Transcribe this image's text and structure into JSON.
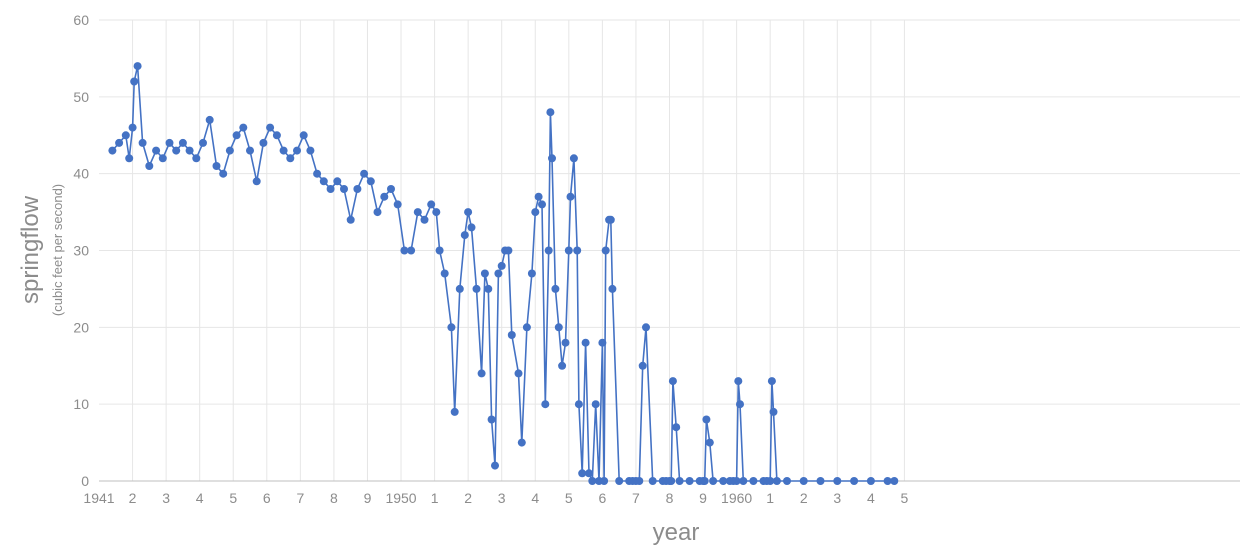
{
  "chart_data": {
    "type": "line",
    "xlabel": "year",
    "ylabel": "springflow",
    "ylabel_sub": "(cubic feet per second)",
    "xlim": [
      1941,
      1975
    ],
    "ylim": [
      0,
      60
    ],
    "y_ticks": [
      0,
      10,
      20,
      30,
      40,
      50,
      60
    ],
    "x_tick_values": [
      1941,
      1942,
      1943,
      1944,
      1945,
      1946,
      1947,
      1948,
      1949,
      1950,
      1951,
      1952,
      1953,
      1954,
      1955,
      1956,
      1957,
      1958,
      1959,
      1960,
      1961,
      1962,
      1963,
      1964,
      1965
    ],
    "x_tick_labels": [
      "1941",
      "2",
      "3",
      "4",
      "5",
      "6",
      "7",
      "8",
      "9",
      "1950",
      "1",
      "2",
      "3",
      "4",
      "5",
      "6",
      "7",
      "8",
      "9",
      "1960",
      "1",
      "2",
      "3",
      "4",
      "5"
    ],
    "grid": {
      "horizontal": true,
      "vertical": true
    },
    "marker": "circle",
    "color": "#4472c4",
    "series": [
      {
        "x": [
          1941.4,
          1941.6,
          1941.8,
          1941.9,
          1942.0,
          1942.05,
          1942.15,
          1942.3,
          1942.5,
          1942.7,
          1942.9,
          1943.1,
          1943.3,
          1943.5,
          1943.7,
          1943.9,
          1944.1,
          1944.3,
          1944.5,
          1944.7,
          1944.9,
          1945.1,
          1945.3,
          1945.5,
          1945.7,
          1945.9,
          1946.1,
          1946.3,
          1946.5,
          1946.7,
          1946.9,
          1947.1,
          1947.3,
          1947.5,
          1947.7,
          1947.9,
          1948.1,
          1948.3,
          1948.5,
          1948.7,
          1948.9,
          1949.1,
          1949.3,
          1949.5,
          1949.7,
          1949.9,
          1950.1,
          1950.3,
          1950.5,
          1950.7,
          1950.9,
          1951.05,
          1951.15,
          1951.3,
          1951.5,
          1951.6,
          1951.75,
          1951.9,
          1952.0,
          1952.1,
          1952.25,
          1952.4,
          1952.5,
          1952.6,
          1952.7,
          1952.8,
          1952.9,
          1953.0,
          1953.1,
          1953.2,
          1953.3,
          1953.5,
          1953.6,
          1953.75,
          1953.9,
          1954.0,
          1954.1,
          1954.2,
          1954.3,
          1954.4,
          1954.45,
          1954.5,
          1954.6,
          1954.7,
          1954.8,
          1954.9,
          1955.0,
          1955.05,
          1955.15,
          1955.25,
          1955.3,
          1955.4,
          1955.5,
          1955.6,
          1955.7,
          1955.8,
          1955.9,
          1956.0,
          1956.05,
          1956.1,
          1956.2,
          1956.25,
          1956.3,
          1956.5,
          1956.8,
          1956.9,
          1957.0,
          1957.1,
          1957.2,
          1957.3,
          1957.5,
          1957.8,
          1957.9,
          1958.0,
          1958.05,
          1958.1,
          1958.2,
          1958.3,
          1958.6,
          1958.9,
          1959.0,
          1959.05,
          1959.1,
          1959.2,
          1959.3,
          1959.6,
          1959.8,
          1959.9,
          1960.0,
          1960.05,
          1960.1,
          1960.2,
          1960.5,
          1960.8,
          1960.9,
          1961.0,
          1961.05,
          1961.1,
          1961.2,
          1961.5,
          1962.0,
          1962.5,
          1963.0,
          1963.5,
          1964.0,
          1964.5,
          1964.7
        ],
        "y": [
          43,
          44,
          45,
          42,
          46,
          52,
          54,
          44,
          41,
          43,
          42,
          44,
          43,
          44,
          43,
          42,
          44,
          47,
          41,
          40,
          43,
          45,
          46,
          43,
          39,
          44,
          46,
          45,
          43,
          42,
          43,
          45,
          43,
          40,
          39,
          38,
          39,
          38,
          34,
          38,
          40,
          39,
          35,
          37,
          38,
          36,
          30,
          30,
          35,
          34,
          36,
          35,
          30,
          27,
          20,
          9,
          25,
          32,
          35,
          33,
          25,
          14,
          27,
          25,
          8,
          2,
          27,
          28,
          30,
          30,
          19,
          14,
          5,
          20,
          27,
          35,
          37,
          36,
          10,
          30,
          48,
          42,
          25,
          20,
          15,
          18,
          30,
          37,
          42,
          30,
          10,
          1,
          18,
          1,
          0,
          10,
          0,
          18,
          0,
          30,
          34,
          34,
          25,
          0,
          0,
          0,
          0,
          0,
          15,
          20,
          0,
          0,
          0,
          0,
          0,
          13,
          7,
          0,
          0,
          0,
          0,
          0,
          8,
          5,
          0,
          0,
          0,
          0,
          0,
          13,
          10,
          0,
          0,
          0,
          0,
          0,
          13,
          9,
          0,
          0,
          0,
          0,
          0,
          0,
          0,
          0,
          0
        ]
      }
    ]
  }
}
